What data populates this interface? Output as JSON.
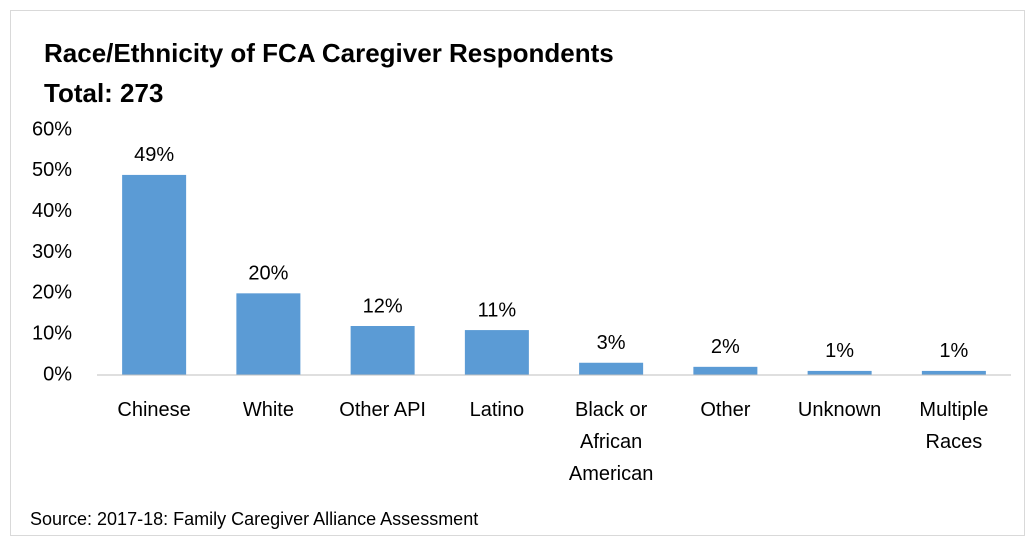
{
  "chart_data": {
    "type": "bar",
    "title": "Race/Ethnicity of FCA Caregiver Respondents",
    "subtitle": "Total: 273",
    "categories": [
      "Chinese",
      "White",
      "Other API",
      "Latino",
      "Black or African American",
      "Other",
      "Unknown",
      "Multiple Races"
    ],
    "values": [
      49,
      20,
      12,
      11,
      3,
      2,
      1,
      1
    ],
    "value_labels": [
      "49%",
      "20%",
      "12%",
      "11%",
      "3%",
      "2%",
      "1%",
      "1%"
    ],
    "color": "#5b9bd5",
    "ylim": [
      0,
      60
    ],
    "yticks": [
      {
        "value": 0,
        "label": "0%"
      },
      {
        "value": 10,
        "label": "10%"
      },
      {
        "value": 20,
        "label": "20%"
      },
      {
        "value": 30,
        "label": "30%"
      },
      {
        "value": 40,
        "label": "40%"
      },
      {
        "value": 50,
        "label": "50%"
      },
      {
        "value": 60,
        "label": "60%"
      }
    ],
    "grid": false,
    "source": "Source: 2017-18: Family Caregiver Alliance Assessment"
  }
}
